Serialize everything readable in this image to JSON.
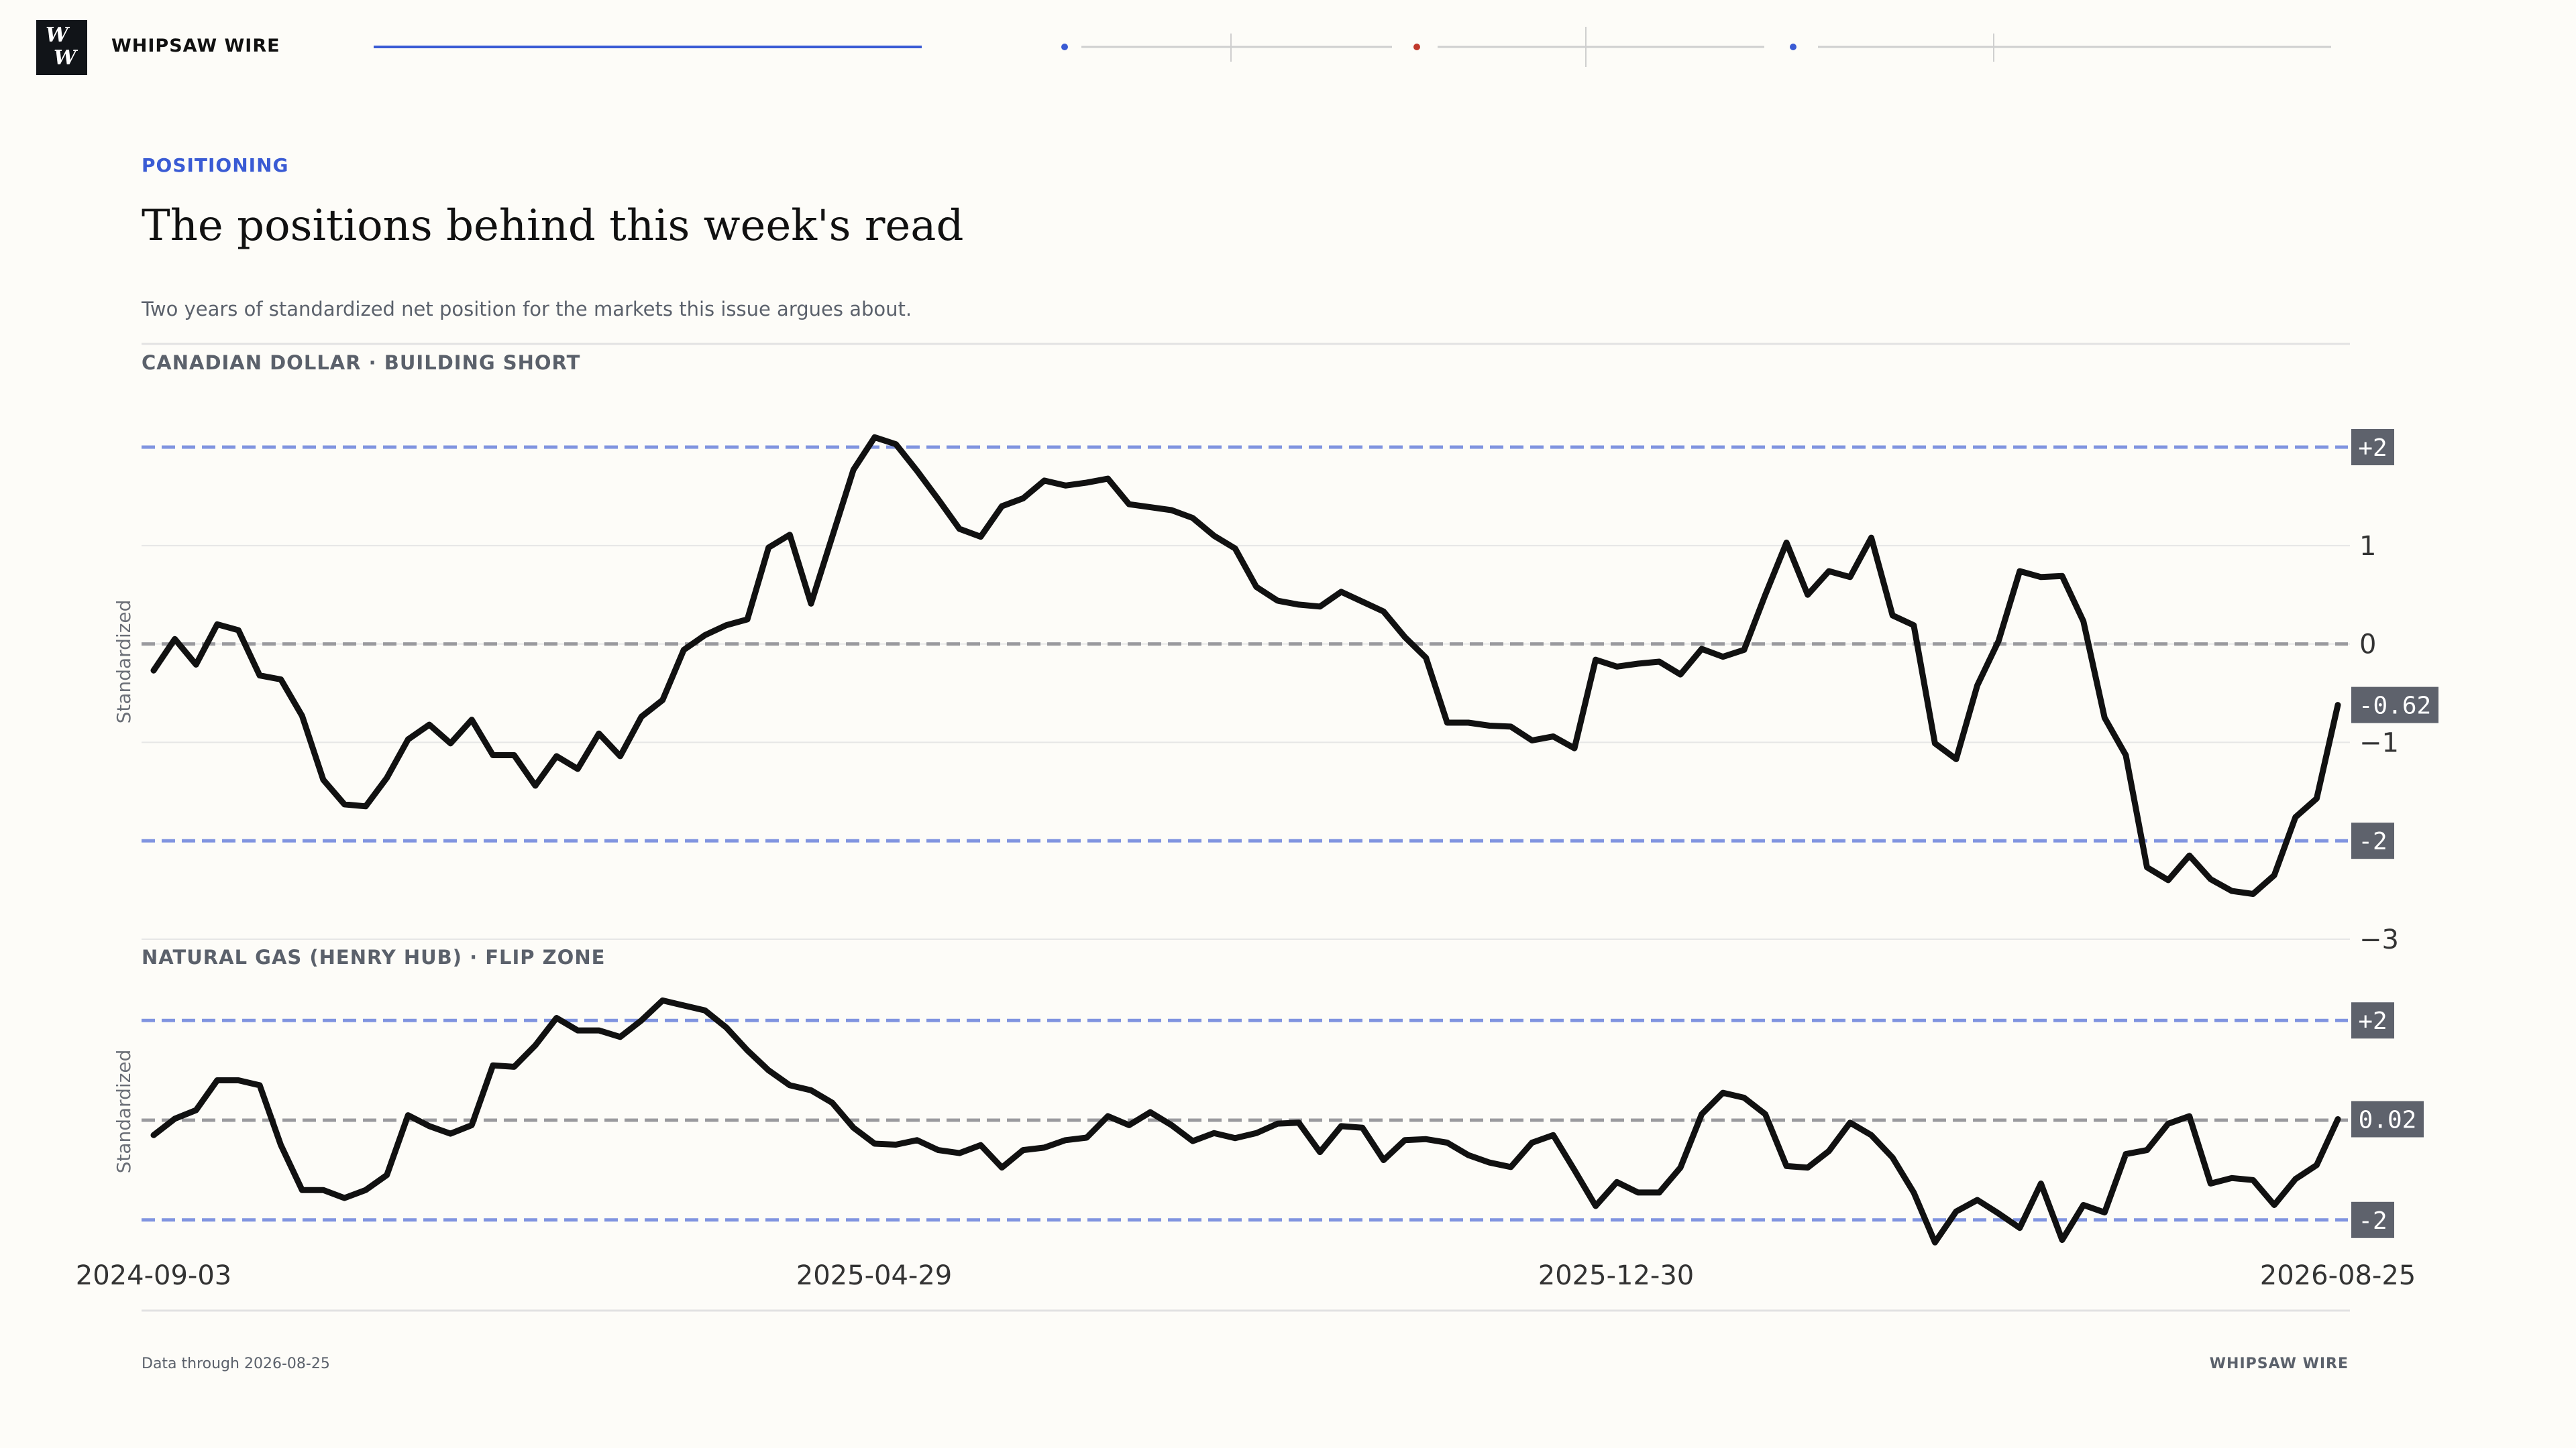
{
  "brand": {
    "logo_line1": "W",
    "logo_line2": "W",
    "name": "WHIPSAW WIRE"
  },
  "article": {
    "kicker": "POSITIONING",
    "headline": "The positions behind this week's read",
    "subhead": "Two years of standardized net position for the markets this issue argues about."
  },
  "footer": {
    "note": "Data through 2026-08-25",
    "brand": "WHIPSAW WIRE"
  },
  "colors": {
    "background": "#fdfcf8",
    "accent": "#3a5bd4",
    "line": "#111111",
    "band_line": "#8094e0",
    "zero_line": "#9a9a9e",
    "badge_bg": "#5e626c",
    "nav_red": "#c0392b"
  },
  "top_nav": {
    "progress": 0.28,
    "dot_colors": [
      "#3a5bd4",
      "#c0392b",
      "#3a5bd4"
    ]
  },
  "chart_data": [
    {
      "type": "line",
      "title": "CANADIAN DOLLAR · BUILDING SHORT",
      "ylabel": "Standardized",
      "ylim": [
        -3,
        2.15
      ],
      "yticks": [
        -3,
        -1,
        0,
        1
      ],
      "ytick_labels": [
        "−3",
        "−1",
        "0",
        "1"
      ],
      "band_labels": [
        "+2",
        "-2"
      ],
      "reference_lines": [
        2,
        0,
        -2
      ],
      "last_value_label": "-0.62",
      "grid": true,
      "x_range": [
        "2024-09-03",
        "2026-08-25"
      ],
      "values": [
        -0.27,
        0.05,
        -0.21,
        0.2,
        0.14,
        -0.32,
        -0.36,
        -0.73,
        -1.38,
        -1.63,
        -1.65,
        -1.36,
        -0.97,
        -0.82,
        -1.01,
        -0.77,
        -1.13,
        -1.13,
        -1.44,
        -1.14,
        -1.27,
        -0.91,
        -1.14,
        -0.74,
        -0.57,
        -0.06,
        0.09,
        0.19,
        0.25,
        0.98,
        1.11,
        0.41,
        1.09,
        1.77,
        2.1,
        2.03,
        1.76,
        1.47,
        1.17,
        1.09,
        1.4,
        1.48,
        1.66,
        1.61,
        1.64,
        1.68,
        1.42,
        1.39,
        1.36,
        1.28,
        1.1,
        0.97,
        0.58,
        0.44,
        0.4,
        0.38,
        0.53,
        0.43,
        0.33,
        0.07,
        -0.14,
        -0.8,
        -0.8,
        -0.83,
        -0.84,
        -0.98,
        -0.94,
        -1.06,
        -0.16,
        -0.23,
        -0.2,
        -0.18,
        -0.31,
        -0.05,
        -0.13,
        -0.06,
        0.5,
        1.03,
        0.5,
        0.74,
        0.68,
        1.08,
        0.29,
        0.19,
        -1.01,
        -1.17,
        -0.42,
        0.03,
        0.74,
        0.68,
        0.69,
        0.23,
        -0.75,
        -1.13,
        -2.27,
        -2.4,
        -2.15,
        -2.39,
        -2.51,
        -2.54,
        -2.35,
        -1.76,
        -1.57,
        -0.62
      ]
    },
    {
      "type": "line",
      "title": "NATURAL GAS (HENRY HUB) · FLIP ZONE",
      "ylabel": "Standardized",
      "ylim": [
        -2.5,
        2.5
      ],
      "yticks": [],
      "ytick_labels": [],
      "band_labels": [
        "+2",
        "-2"
      ],
      "reference_lines": [
        2,
        0,
        -2
      ],
      "last_value_label": "0.02",
      "grid": false,
      "x_range": [
        "2024-09-03",
        "2026-08-25"
      ],
      "xtick_labels": [
        "2024-09-03",
        "2025-04-29",
        "2025-12-30",
        "2026-08-25"
      ],
      "values": [
        -0.3,
        0.03,
        0.2,
        0.8,
        0.8,
        0.7,
        -0.5,
        -1.4,
        -1.4,
        -1.56,
        -1.4,
        -1.1,
        0.1,
        -0.12,
        -0.27,
        -0.1,
        1.1,
        1.07,
        1.5,
        2.05,
        1.8,
        1.8,
        1.67,
        2.0,
        2.4,
        2.3,
        2.2,
        1.86,
        1.4,
        1.0,
        0.7,
        0.6,
        0.35,
        -0.15,
        -0.47,
        -0.49,
        -0.4,
        -0.6,
        -0.66,
        -0.5,
        -0.95,
        -0.6,
        -0.55,
        -0.4,
        -0.35,
        0.08,
        -0.1,
        0.16,
        -0.1,
        -0.42,
        -0.26,
        -0.36,
        -0.26,
        -0.07,
        -0.05,
        -0.64,
        -0.12,
        -0.15,
        -0.8,
        -0.4,
        -0.38,
        -0.45,
        -0.7,
        -0.85,
        -0.94,
        -0.45,
        -0.3,
        -1.0,
        -1.72,
        -1.24,
        -1.45,
        -1.45,
        -0.95,
        0.12,
        0.55,
        0.45,
        0.12,
        -0.92,
        -0.95,
        -0.62,
        -0.05,
        -0.3,
        -0.75,
        -1.45,
        -2.45,
        -1.83,
        -1.6,
        -1.87,
        -2.16,
        -1.27,
        -2.4,
        -1.7,
        -1.85,
        -0.68,
        -0.6,
        -0.07,
        0.08,
        -1.27,
        -1.16,
        -1.2,
        -1.7,
        -1.18,
        -0.9,
        0.02
      ]
    }
  ]
}
